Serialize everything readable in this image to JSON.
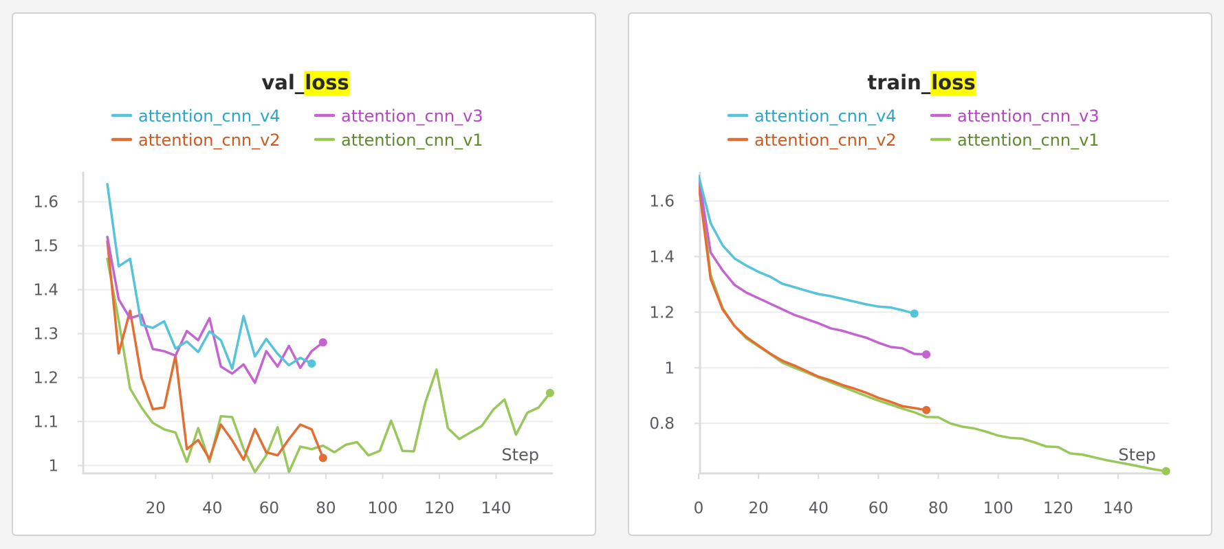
{
  "charts": [
    {
      "prefix": "val_",
      "highlight": "loss",
      "xlabel": "Step",
      "highlight_color": "#ffff00",
      "series": [
        {
          "name": "attention_cnn_v4",
          "color": "#55c3d9",
          "text_color": "#2aa6c4"
        },
        {
          "name": "attention_cnn_v3",
          "color": "#c465cf",
          "text_color": "#b347bf"
        },
        {
          "name": "attention_cnn_v2",
          "color": "#e26e33",
          "text_color": "#c95a20"
        },
        {
          "name": "attention_cnn_v1",
          "color": "#9ac75a",
          "text_color": "#5f8a2c"
        }
      ],
      "xticks": [
        "20",
        "40",
        "60",
        "80",
        "100",
        "120",
        "140"
      ],
      "yticks": [
        "1.6",
        "1.5",
        "1.4",
        "1.3",
        "1.2",
        "1.1",
        "1"
      ]
    },
    {
      "prefix": "train_",
      "highlight": "loss",
      "xlabel": "Step",
      "highlight_color": "#ffff00",
      "series": [
        {
          "name": "attention_cnn_v4",
          "color": "#55c3d9",
          "text_color": "#2aa6c4"
        },
        {
          "name": "attention_cnn_v3",
          "color": "#c465cf",
          "text_color": "#b347bf"
        },
        {
          "name": "attention_cnn_v2",
          "color": "#e26e33",
          "text_color": "#c95a20"
        },
        {
          "name": "attention_cnn_v1",
          "color": "#9ac75a",
          "text_color": "#5f8a2c"
        }
      ],
      "xticks": [
        "0",
        "20",
        "40",
        "60",
        "80",
        "100",
        "120",
        "140"
      ],
      "yticks": [
        "1.6",
        "1.4",
        "1.2",
        "1",
        "0.8"
      ]
    }
  ],
  "chart_data": [
    {
      "type": "line",
      "title": "val_loss",
      "xlabel": "Step",
      "ylabel": "",
      "xlim": [
        -6,
        160
      ],
      "ylim": [
        0.985,
        1.665
      ],
      "grid": true,
      "legend_position": "top",
      "series": [
        {
          "name": "attention_cnn_v4",
          "color": "#55c3d9",
          "x": [
            3,
            7,
            11,
            15,
            19,
            23,
            27,
            31,
            35,
            39,
            43,
            47,
            51,
            55,
            59,
            63,
            67,
            71,
            75
          ],
          "y": [
            1.64,
            1.453,
            1.47,
            1.32,
            1.313,
            1.328,
            1.266,
            1.282,
            1.258,
            1.305,
            1.285,
            1.22,
            1.34,
            1.248,
            1.288,
            1.254,
            1.228,
            1.245,
            1.232
          ]
        },
        {
          "name": "attention_cnn_v3",
          "color": "#c465cf",
          "x": [
            3,
            7,
            11,
            15,
            19,
            23,
            27,
            31,
            35,
            39,
            43,
            47,
            51,
            55,
            59,
            63,
            67,
            71,
            75,
            79
          ],
          "y": [
            1.52,
            1.378,
            1.335,
            1.343,
            1.265,
            1.26,
            1.25,
            1.306,
            1.285,
            1.335,
            1.225,
            1.209,
            1.23,
            1.188,
            1.26,
            1.225,
            1.272,
            1.222,
            1.26,
            1.28
          ]
        },
        {
          "name": "attention_cnn_v2",
          "color": "#e26e33",
          "x": [
            3,
            7,
            11,
            15,
            19,
            23,
            27,
            31,
            35,
            39,
            43,
            47,
            51,
            55,
            59,
            63,
            67,
            71,
            75,
            79
          ],
          "y": [
            1.51,
            1.255,
            1.352,
            1.2,
            1.128,
            1.132,
            1.25,
            1.037,
            1.058,
            1.015,
            1.093,
            1.057,
            1.013,
            1.083,
            1.03,
            1.023,
            1.06,
            1.093,
            1.082,
            1.017
          ]
        },
        {
          "name": "attention_cnn_v1",
          "color": "#9ac75a",
          "x": [
            3,
            7,
            11,
            15,
            19,
            23,
            27,
            31,
            35,
            39,
            43,
            47,
            51,
            55,
            59,
            63,
            67,
            71,
            75,
            79,
            83,
            87,
            91,
            95,
            99,
            103,
            107,
            111,
            115,
            119,
            123,
            127,
            131,
            135,
            139,
            143,
            147,
            151,
            155,
            159
          ],
          "y": [
            1.47,
            1.33,
            1.175,
            1.132,
            1.097,
            1.082,
            1.075,
            1.008,
            1.085,
            1.008,
            1.112,
            1.11,
            1.038,
            0.985,
            1.023,
            1.087,
            0.985,
            1.043,
            1.037,
            1.045,
            1.03,
            1.047,
            1.053,
            1.023,
            1.033,
            1.102,
            1.033,
            1.032,
            1.142,
            1.218,
            1.085,
            1.06,
            1.075,
            1.09,
            1.127,
            1.15,
            1.07,
            1.12,
            1.132,
            1.165
          ]
        }
      ]
    },
    {
      "type": "line",
      "title": "train_loss",
      "xlabel": "Step",
      "ylabel": "",
      "xlim": [
        0,
        157
      ],
      "ylim": [
        0.625,
        1.7
      ],
      "grid": true,
      "legend_position": "top",
      "series": [
        {
          "name": "attention_cnn_v4",
          "color": "#55c3d9",
          "x": [
            0,
            4,
            8,
            12,
            16,
            20,
            24,
            28,
            32,
            36,
            40,
            44,
            48,
            52,
            56,
            60,
            64,
            68,
            72
          ],
          "y": [
            1.69,
            1.52,
            1.44,
            1.393,
            1.367,
            1.345,
            1.327,
            1.302,
            1.29,
            1.277,
            1.265,
            1.258,
            1.248,
            1.238,
            1.228,
            1.22,
            1.217,
            1.207,
            1.195
          ]
        },
        {
          "name": "attention_cnn_v3",
          "color": "#c465cf",
          "x": [
            0,
            4,
            8,
            12,
            16,
            20,
            24,
            28,
            32,
            36,
            40,
            44,
            48,
            52,
            56,
            60,
            64,
            68,
            72,
            76
          ],
          "y": [
            1.69,
            1.415,
            1.35,
            1.298,
            1.27,
            1.25,
            1.23,
            1.21,
            1.19,
            1.175,
            1.16,
            1.142,
            1.133,
            1.12,
            1.108,
            1.09,
            1.075,
            1.07,
            1.05,
            1.048
          ]
        },
        {
          "name": "attention_cnn_v2",
          "color": "#e26e33",
          "x": [
            0,
            4,
            8,
            12,
            16,
            20,
            24,
            28,
            32,
            36,
            40,
            44,
            48,
            52,
            56,
            60,
            64,
            68,
            72,
            76
          ],
          "y": [
            1.66,
            1.32,
            1.21,
            1.15,
            1.11,
            1.08,
            1.05,
            1.025,
            1.008,
            0.988,
            0.968,
            0.955,
            0.938,
            0.925,
            0.91,
            0.892,
            0.878,
            0.862,
            0.855,
            0.848
          ]
        },
        {
          "name": "attention_cnn_v1",
          "color": "#9ac75a",
          "x": [
            0,
            4,
            8,
            12,
            16,
            20,
            24,
            28,
            32,
            36,
            40,
            44,
            48,
            52,
            56,
            60,
            64,
            68,
            72,
            76,
            80,
            84,
            88,
            92,
            96,
            100,
            104,
            108,
            112,
            116,
            120,
            124,
            128,
            132,
            136,
            140,
            144,
            148,
            152,
            156
          ],
          "y": [
            1.69,
            1.335,
            1.215,
            1.15,
            1.105,
            1.077,
            1.048,
            1.018,
            1.0,
            0.983,
            0.965,
            0.948,
            0.932,
            0.915,
            0.898,
            0.882,
            0.868,
            0.853,
            0.84,
            0.823,
            0.822,
            0.8,
            0.788,
            0.782,
            0.77,
            0.756,
            0.748,
            0.745,
            0.732,
            0.717,
            0.715,
            0.692,
            0.688,
            0.678,
            0.668,
            0.66,
            0.652,
            0.643,
            0.635,
            0.628
          ]
        }
      ]
    }
  ]
}
